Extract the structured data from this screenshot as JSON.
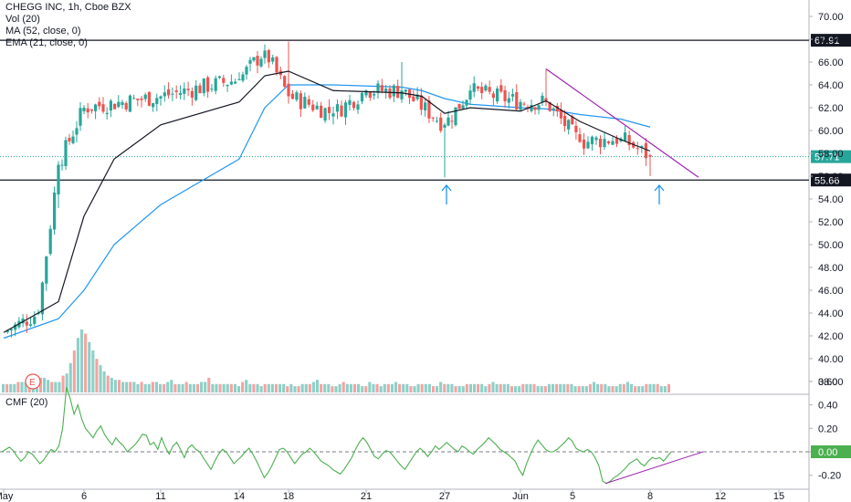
{
  "legend": {
    "symbol": "CHEGG INC, 1h, Cboe BZX",
    "vol": "Vol (20)",
    "ma": "MA (52, close, 0)",
    "ema": "EMA (21, close, 0)",
    "cmf": "CMF (20)"
  },
  "colors": {
    "up": "#26a69a",
    "down": "#ef5350",
    "vol_up": "#8dd0c8",
    "vol_down": "#f4a3a1",
    "ema": "#131722",
    "ma": "#2196f3",
    "cmf": "#4caf50",
    "trendline": "#9c27b0",
    "arrow": "#2196f3",
    "price_tag": "#131722",
    "last_tag": "#26a69a"
  },
  "earnings_marker": "E",
  "chart_data": [
    {
      "type": "candlestick",
      "title": "CHEGG INC, 1h, Cboe BZX",
      "ylim": [
        36.6,
        72.3
      ],
      "yticks": [
        "70.00",
        "68.00",
        "66.00",
        "64.00",
        "62.00",
        "60.00",
        "58.00",
        "56.00",
        "54.00",
        "52.00",
        "50.00",
        "48.00",
        "46.00",
        "44.00",
        "42.00",
        "40.00",
        "38.00"
      ],
      "xticks": [
        "May",
        "6",
        "11",
        "14",
        "18",
        "21",
        "27",
        "Jun",
        "5",
        "8",
        "12",
        "15"
      ],
      "horizontal_lines": [
        {
          "value": 67.91,
          "label": "67.91"
        },
        {
          "value": 55.66,
          "label": "55.66"
        }
      ],
      "last_price": {
        "value": 57.71,
        "label": "57.71"
      },
      "key_points": [
        {
          "session": "May 1",
          "close": 42.3
        },
        {
          "session": "May 4",
          "close": 44.0
        },
        {
          "session": "May 5 (earnings gap)",
          "low": 53.2,
          "close": 57.0
        },
        {
          "session": "May 6",
          "close": 62.0
        },
        {
          "session": "May 11",
          "close": 63.0
        },
        {
          "session": "May 14",
          "close": 64.5
        },
        {
          "session": "May 15",
          "close": 67.0
        },
        {
          "session": "May 18",
          "high": 67.8,
          "close": 63.0
        },
        {
          "session": "May 20",
          "close": 61.5
        },
        {
          "session": "May 21",
          "close": 63.5
        },
        {
          "session": "May 22",
          "high": 66.0,
          "close": 63.5
        },
        {
          "session": "May 27",
          "low": 55.9,
          "close": 60.5
        },
        {
          "session": "May 28",
          "close": 63.5
        },
        {
          "session": "Jun 1",
          "close": 62.5
        },
        {
          "session": "Jun 2",
          "high": 65.4,
          "close": 62.5
        },
        {
          "session": "Jun 4",
          "close": 59.0
        },
        {
          "session": "Jun 5",
          "close": 59.3
        },
        {
          "session": "Jun 8",
          "low": 56.0,
          "close": 57.71
        }
      ],
      "volume": {
        "name": "Vol (20)",
        "relative_bars": [
          4,
          4,
          4,
          4,
          5,
          5,
          5,
          6,
          6,
          6,
          7,
          7,
          6,
          5,
          5,
          5,
          8,
          9,
          14,
          20,
          26,
          30,
          28,
          24,
          20,
          16,
          13,
          10,
          8,
          7,
          6,
          6,
          5,
          5,
          5,
          5,
          4,
          5,
          4,
          4,
          5,
          5,
          4,
          4,
          5,
          6,
          4,
          4,
          4,
          5,
          4,
          4,
          4,
          5,
          5,
          7,
          4,
          4,
          4,
          4,
          4,
          4,
          4,
          3,
          5,
          6,
          4,
          4,
          4,
          3,
          4,
          4,
          4,
          4,
          4,
          4,
          3,
          4,
          3,
          3,
          4,
          4,
          4,
          5,
          6,
          4,
          4,
          4,
          3,
          3,
          4,
          5,
          4,
          4,
          4,
          4,
          3,
          3,
          5,
          4,
          4,
          3,
          4,
          4,
          4,
          5,
          4,
          4,
          4,
          3,
          3,
          4,
          4,
          4,
          4,
          3,
          3,
          5,
          4,
          4,
          4,
          3,
          3,
          3,
          4,
          4,
          4,
          4,
          4,
          3,
          4,
          5,
          4,
          4,
          4,
          4,
          3,
          3,
          3,
          4,
          4,
          4,
          4,
          3,
          3,
          3,
          4,
          4,
          4,
          4,
          4,
          4,
          4,
          3,
          3,
          3,
          3,
          4,
          5,
          4,
          4,
          4,
          3,
          3,
          3,
          4,
          4,
          5,
          4,
          3,
          3,
          3,
          4,
          4,
          4,
          4,
          3,
          3,
          4
        ]
      },
      "ema": {
        "name": "EMA (21, close, 0)",
        "points": [
          {
            "x": "May 1",
            "y": 42.3
          },
          {
            "x": "May 5",
            "y": 45.0
          },
          {
            "x": "May 6",
            "y": 52.5
          },
          {
            "x": "May 8",
            "y": 57.5
          },
          {
            "x": "May 11",
            "y": 60.5
          },
          {
            "x": "May 14",
            "y": 62.5
          },
          {
            "x": "May 15",
            "y": 64.8
          },
          {
            "x": "May 18",
            "y": 65.2
          },
          {
            "x": "May 20",
            "y": 63.5
          },
          {
            "x": "May 22",
            "y": 63.3
          },
          {
            "x": "May 26",
            "y": 63.0
          },
          {
            "x": "May 27",
            "y": 61.5
          },
          {
            "x": "May 28",
            "y": 62.0
          },
          {
            "x": "Jun 1",
            "y": 61.7
          },
          {
            "x": "Jun 2",
            "y": 62.6
          },
          {
            "x": "Jun 4",
            "y": 60.8
          },
          {
            "x": "Jun 5",
            "y": 59.2
          },
          {
            "x": "Jun 8",
            "y": 58.2
          }
        ]
      },
      "ma": {
        "name": "MA (52, close, 0)",
        "points": [
          {
            "x": "May 1",
            "y": 41.8
          },
          {
            "x": "May 5",
            "y": 43.5
          },
          {
            "x": "May 6",
            "y": 46.0
          },
          {
            "x": "May 8",
            "y": 50.0
          },
          {
            "x": "May 11",
            "y": 53.5
          },
          {
            "x": "May 14",
            "y": 57.5
          },
          {
            "x": "May 15",
            "y": 62.0
          },
          {
            "x": "May 18",
            "y": 64.0
          },
          {
            "x": "May 20",
            "y": 64.0
          },
          {
            "x": "May 22",
            "y": 63.8
          },
          {
            "x": "May 26",
            "y": 63.5
          },
          {
            "x": "May 27",
            "y": 62.8
          },
          {
            "x": "May 28",
            "y": 62.3
          },
          {
            "x": "Jun 1",
            "y": 62.0
          },
          {
            "x": "Jun 2",
            "y": 61.9
          },
          {
            "x": "Jun 4",
            "y": 61.4
          },
          {
            "x": "Jun 5",
            "y": 61.0
          },
          {
            "x": "Jun 8",
            "y": 60.3
          }
        ]
      },
      "trendline": {
        "from": {
          "x": "Jun 2",
          "y": 65.4
        },
        "to": {
          "x": "Jun 10",
          "y": 55.9
        }
      }
    },
    {
      "type": "line",
      "title": "CMF (20)",
      "ylim": [
        -0.33,
        0.64
      ],
      "yticks": [
        "0.60",
        "0.40",
        "0.20",
        "0.00",
        "-0.20"
      ],
      "zero_line": 0.0,
      "last_value": {
        "value": 0.0,
        "label": "0.00"
      },
      "series": [
        {
          "name": "CMF (20)",
          "values": [
            0.0,
            0.02,
            0.04,
            0.01,
            -0.04,
            -0.08,
            -0.05,
            0.0,
            -0.02,
            -0.06,
            -0.1,
            -0.07,
            -0.02,
            0.02,
            0.0,
            0.05,
            0.2,
            0.55,
            0.45,
            0.32,
            0.4,
            0.28,
            0.2,
            0.16,
            0.12,
            0.18,
            0.22,
            0.15,
            0.1,
            0.06,
            0.12,
            0.08,
            0.05,
            0.0,
            0.03,
            0.06,
            0.1,
            0.15,
            0.14,
            0.06,
            0.08,
            0.02,
            0.12,
            0.04,
            -0.02,
            0.05,
            0.08,
            0.02,
            -0.05,
            0.03,
            0.06,
            0.02,
            0.0,
            -0.05,
            -0.1,
            -0.15,
            -0.08,
            -0.02,
            0.02,
            0.0,
            -0.05,
            -0.1,
            -0.07,
            -0.04,
            0.0,
            0.03,
            -0.02,
            -0.08,
            -0.15,
            -0.22,
            -0.18,
            -0.12,
            -0.05,
            0.02,
            0.03,
            0.0,
            -0.05,
            -0.1,
            -0.06,
            -0.02,
            0.0,
            0.03,
            0.0,
            -0.04,
            -0.08,
            -0.1,
            -0.12,
            -0.15,
            -0.17,
            -0.19,
            -0.15,
            -0.1,
            -0.05,
            0.02,
            0.08,
            0.12,
            0.08,
            0.02,
            -0.04,
            -0.06,
            -0.02,
            0.01,
            0.0,
            -0.04,
            -0.08,
            -0.12,
            -0.15,
            -0.1,
            -0.05,
            0.0,
            0.03,
            0.0,
            -0.04,
            0.0,
            0.05,
            0.02,
            0.05,
            0.08,
            0.05,
            0.02,
            0.0,
            0.05,
            0.03,
            0.0,
            -0.02,
            0.02,
            0.05,
            0.08,
            0.12,
            0.09,
            0.06,
            0.02,
            0.0,
            -0.02,
            -0.05,
            -0.08,
            -0.15,
            -0.2,
            -0.1,
            -0.02,
            0.05,
            0.1,
            0.06,
            0.02,
            0.0,
            0.0,
            0.02,
            0.05,
            0.08,
            0.12,
            0.09,
            0.03,
            0.01,
            0.0,
            0.02,
            0.0,
            -0.05,
            -0.12,
            -0.25,
            -0.27,
            -0.25,
            -0.22,
            -0.2,
            -0.17,
            -0.14,
            -0.1,
            -0.08,
            -0.06,
            -0.1,
            -0.12,
            -0.08,
            -0.05,
            -0.06,
            -0.05,
            -0.08,
            -0.04,
            0.0
          ]
        }
      ],
      "trendline": {
        "from": {
          "x": "Jun 5",
          "y": -0.27
        },
        "to": {
          "x": "Jun 10",
          "y": 0.0
        }
      }
    }
  ]
}
